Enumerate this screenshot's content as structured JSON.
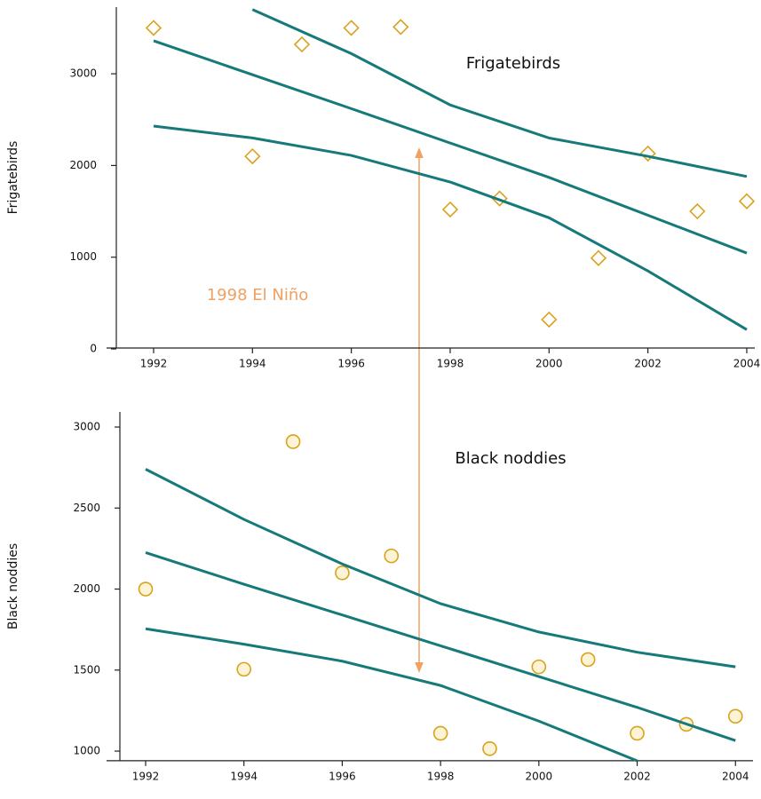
{
  "chart_data": [
    {
      "type": "scatter",
      "title": "Frigatebirds",
      "y_label": "Frigatebirds",
      "annotation": "1998 El Niño",
      "xlim": [
        1991,
        2004.2
      ],
      "xticks": [
        1992,
        1994,
        1996,
        1998,
        2000,
        2002,
        2004
      ],
      "ylim": [
        0,
        3730
      ],
      "yticks": [
        0,
        1000,
        2000,
        3000
      ],
      "series": [
        {
          "kind": "points",
          "marker": "diamond",
          "color": "#d9a21c",
          "x": [
            1992,
            1994,
            1995,
            1996,
            1997,
            1998,
            1999,
            2000,
            2001,
            2002,
            2003,
            2004
          ],
          "values": [
            3500,
            2100,
            3320,
            3500,
            3510,
            1520,
            1640,
            320,
            990,
            2130,
            1500,
            1610
          ]
        },
        {
          "kind": "line",
          "color": "#16797a",
          "x": [
            1994,
            1996,
            1998,
            2000,
            2002,
            2004
          ],
          "values": [
            3700,
            3220,
            2660,
            2300,
            2100,
            1880
          ]
        },
        {
          "kind": "line",
          "color": "#16797a",
          "x": [
            1992,
            1996,
            2000,
            2004
          ],
          "values": [
            3360,
            2620,
            1870,
            1045
          ]
        },
        {
          "kind": "line",
          "color": "#16797a",
          "x": [
            1992,
            1994,
            1996,
            1998,
            2000,
            2002,
            2004
          ],
          "values": [
            2430,
            2300,
            2110,
            1820,
            1430,
            850,
            210
          ]
        }
      ]
    },
    {
      "type": "scatter",
      "title": "Black noddies",
      "y_label": "Black noddies",
      "xlim": [
        1991.2,
        2004.4
      ],
      "xticks": [
        1992,
        1994,
        1996,
        1998,
        2000,
        2002,
        2004
      ],
      "ylim": [
        935,
        3090
      ],
      "yticks": [
        1000,
        1500,
        2000,
        2500,
        3000
      ],
      "series": [
        {
          "kind": "points",
          "marker": "circle",
          "color": "#d9a21c",
          "x": [
            1992,
            1994,
            1995,
            1996,
            1997,
            1998,
            1999,
            2000,
            2001,
            2002,
            2003,
            2004
          ],
          "values": [
            2000,
            1505,
            2910,
            2100,
            2205,
            1110,
            1015,
            1520,
            1565,
            1110,
            1165,
            1215
          ]
        },
        {
          "kind": "line",
          "color": "#16797a",
          "x": [
            1992,
            1994,
            1996,
            1998,
            2000,
            2002,
            2004
          ],
          "values": [
            2740,
            2430,
            2155,
            1910,
            1735,
            1610,
            1520
          ]
        },
        {
          "kind": "line",
          "color": "#16797a",
          "x": [
            1992,
            1994,
            1996,
            1998,
            2000,
            2002,
            2004
          ],
          "values": [
            2225,
            2030,
            1840,
            1650,
            1460,
            1270,
            1065
          ]
        },
        {
          "kind": "line",
          "color": "#16797a",
          "x": [
            1992,
            1994,
            1996,
            1998,
            2000,
            2002
          ],
          "values": [
            1755,
            1660,
            1555,
            1405,
            1185,
            940
          ]
        }
      ]
    }
  ]
}
